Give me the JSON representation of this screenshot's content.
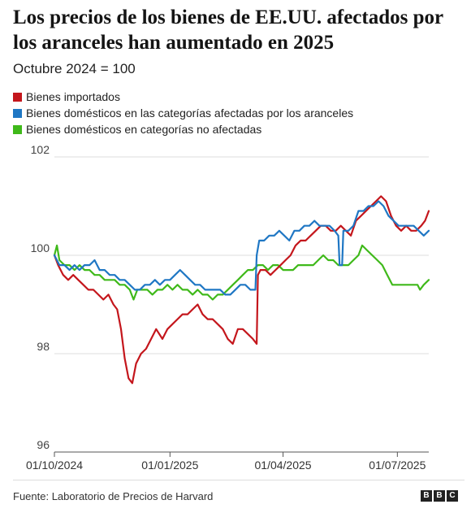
{
  "header": {
    "title": "Los precios de los bienes de EE.UU. afectados por los aranceles han aumentado en 2025",
    "subtitle": "Octubre 2024 = 100"
  },
  "footer": {
    "source": "Fuente: Laboratorio de Precios de Harvard",
    "logo_letters": [
      "B",
      "B",
      "C"
    ]
  },
  "chart_data": {
    "type": "line",
    "title": "Los precios de los bienes de EE.UU. afectados por los aranceles han aumentado en 2025",
    "subtitle": "Octubre 2024 = 100",
    "xlabel": "",
    "ylabel": "",
    "ylim": [
      96,
      102
    ],
    "yticks": [
      "102",
      "100",
      "98",
      "96"
    ],
    "xlim": [
      "2024-10-01",
      "2025-07-26"
    ],
    "xticks": [
      {
        "label": "01/10/2024",
        "date": "2024-10-01"
      },
      {
        "label": "01/01/2025",
        "date": "2025-01-01"
      },
      {
        "label": "01/04/2025",
        "date": "2025-04-01"
      },
      {
        "label": "01/07/2025",
        "date": "2025-07-01"
      }
    ],
    "grid": "horizontal",
    "legend_position": "top-left",
    "series": [
      {
        "name": "Bienes importados",
        "color": "#c4161c",
        "points": [
          [
            "2024-10-01",
            100.0
          ],
          [
            "2024-10-04",
            99.8
          ],
          [
            "2024-10-08",
            99.6
          ],
          [
            "2024-10-12",
            99.5
          ],
          [
            "2024-10-16",
            99.6
          ],
          [
            "2024-10-20",
            99.5
          ],
          [
            "2024-10-24",
            99.4
          ],
          [
            "2024-10-28",
            99.3
          ],
          [
            "2024-11-01",
            99.3
          ],
          [
            "2024-11-05",
            99.2
          ],
          [
            "2024-11-09",
            99.1
          ],
          [
            "2024-11-13",
            99.2
          ],
          [
            "2024-11-17",
            99.0
          ],
          [
            "2024-11-20",
            98.9
          ],
          [
            "2024-11-23",
            98.5
          ],
          [
            "2024-11-26",
            97.9
          ],
          [
            "2024-11-29",
            97.5
          ],
          [
            "2024-12-02",
            97.4
          ],
          [
            "2024-12-05",
            97.8
          ],
          [
            "2024-12-09",
            98.0
          ],
          [
            "2024-12-13",
            98.1
          ],
          [
            "2024-12-17",
            98.3
          ],
          [
            "2024-12-21",
            98.5
          ],
          [
            "2024-12-26",
            98.3
          ],
          [
            "2024-12-30",
            98.5
          ],
          [
            "2025-01-03",
            98.6
          ],
          [
            "2025-01-07",
            98.7
          ],
          [
            "2025-01-11",
            98.8
          ],
          [
            "2025-01-15",
            98.8
          ],
          [
            "2025-01-19",
            98.9
          ],
          [
            "2025-01-23",
            99.0
          ],
          [
            "2025-01-27",
            98.8
          ],
          [
            "2025-01-31",
            98.7
          ],
          [
            "2025-02-04",
            98.7
          ],
          [
            "2025-02-08",
            98.6
          ],
          [
            "2025-02-12",
            98.5
          ],
          [
            "2025-02-16",
            98.3
          ],
          [
            "2025-02-20",
            98.2
          ],
          [
            "2025-02-24",
            98.5
          ],
          [
            "2025-02-28",
            98.5
          ],
          [
            "2025-03-04",
            98.4
          ],
          [
            "2025-03-08",
            98.3
          ],
          [
            "2025-03-11",
            98.2
          ],
          [
            "2025-03-12",
            99.6
          ],
          [
            "2025-03-14",
            99.7
          ],
          [
            "2025-03-18",
            99.7
          ],
          [
            "2025-03-22",
            99.6
          ],
          [
            "2025-03-26",
            99.7
          ],
          [
            "2025-03-30",
            99.8
          ],
          [
            "2025-04-03",
            99.9
          ],
          [
            "2025-04-07",
            100.0
          ],
          [
            "2025-04-11",
            100.2
          ],
          [
            "2025-04-15",
            100.3
          ],
          [
            "2025-04-19",
            100.3
          ],
          [
            "2025-04-23",
            100.4
          ],
          [
            "2025-04-27",
            100.5
          ],
          [
            "2025-05-01",
            100.6
          ],
          [
            "2025-05-05",
            100.6
          ],
          [
            "2025-05-09",
            100.5
          ],
          [
            "2025-05-13",
            100.5
          ],
          [
            "2025-05-17",
            100.6
          ],
          [
            "2025-05-21",
            100.5
          ],
          [
            "2025-05-25",
            100.4
          ],
          [
            "2025-05-29",
            100.7
          ],
          [
            "2025-06-02",
            100.8
          ],
          [
            "2025-06-06",
            100.9
          ],
          [
            "2025-06-10",
            101.0
          ],
          [
            "2025-06-14",
            101.1
          ],
          [
            "2025-06-18",
            101.2
          ],
          [
            "2025-06-22",
            101.1
          ],
          [
            "2025-06-26",
            100.8
          ],
          [
            "2025-06-30",
            100.6
          ],
          [
            "2025-07-04",
            100.5
          ],
          [
            "2025-07-08",
            100.6
          ],
          [
            "2025-07-12",
            100.5
          ],
          [
            "2025-07-16",
            100.5
          ],
          [
            "2025-07-20",
            100.6
          ],
          [
            "2025-07-23",
            100.7
          ],
          [
            "2025-07-26",
            100.9
          ]
        ]
      },
      {
        "name": "Bienes domésticos en las categorías afectadas por los aranceles",
        "color": "#1f77c4",
        "points": [
          [
            "2024-10-01",
            100.0
          ],
          [
            "2024-10-05",
            99.8
          ],
          [
            "2024-10-09",
            99.8
          ],
          [
            "2024-10-13",
            99.7
          ],
          [
            "2024-10-17",
            99.8
          ],
          [
            "2024-10-21",
            99.7
          ],
          [
            "2024-10-25",
            99.8
          ],
          [
            "2024-10-29",
            99.8
          ],
          [
            "2024-11-02",
            99.9
          ],
          [
            "2024-11-06",
            99.7
          ],
          [
            "2024-11-10",
            99.7
          ],
          [
            "2024-11-14",
            99.6
          ],
          [
            "2024-11-18",
            99.6
          ],
          [
            "2024-11-22",
            99.5
          ],
          [
            "2024-11-26",
            99.5
          ],
          [
            "2024-11-30",
            99.4
          ],
          [
            "2024-12-04",
            99.3
          ],
          [
            "2024-12-08",
            99.3
          ],
          [
            "2024-12-12",
            99.4
          ],
          [
            "2024-12-16",
            99.4
          ],
          [
            "2024-12-20",
            99.5
          ],
          [
            "2024-12-24",
            99.4
          ],
          [
            "2024-12-28",
            99.5
          ],
          [
            "2025-01-01",
            99.5
          ],
          [
            "2025-01-05",
            99.6
          ],
          [
            "2025-01-09",
            99.7
          ],
          [
            "2025-01-13",
            99.6
          ],
          [
            "2025-01-17",
            99.5
          ],
          [
            "2025-01-21",
            99.4
          ],
          [
            "2025-01-25",
            99.4
          ],
          [
            "2025-01-29",
            99.3
          ],
          [
            "2025-02-02",
            99.3
          ],
          [
            "2025-02-06",
            99.3
          ],
          [
            "2025-02-10",
            99.3
          ],
          [
            "2025-02-14",
            99.2
          ],
          [
            "2025-02-18",
            99.2
          ],
          [
            "2025-02-22",
            99.3
          ],
          [
            "2025-02-26",
            99.4
          ],
          [
            "2025-03-02",
            99.4
          ],
          [
            "2025-03-06",
            99.3
          ],
          [
            "2025-03-10",
            99.3
          ],
          [
            "2025-03-11",
            100.0
          ],
          [
            "2025-03-13",
            100.3
          ],
          [
            "2025-03-17",
            100.3
          ],
          [
            "2025-03-21",
            100.4
          ],
          [
            "2025-03-25",
            100.4
          ],
          [
            "2025-03-29",
            100.5
          ],
          [
            "2025-04-02",
            100.4
          ],
          [
            "2025-04-06",
            100.3
          ],
          [
            "2025-04-10",
            100.5
          ],
          [
            "2025-04-14",
            100.5
          ],
          [
            "2025-04-18",
            100.6
          ],
          [
            "2025-04-22",
            100.6
          ],
          [
            "2025-04-26",
            100.7
          ],
          [
            "2025-04-30",
            100.6
          ],
          [
            "2025-05-04",
            100.6
          ],
          [
            "2025-05-08",
            100.6
          ],
          [
            "2025-05-12",
            100.5
          ],
          [
            "2025-05-15",
            100.4
          ],
          [
            "2025-05-16",
            99.8
          ],
          [
            "2025-05-18",
            99.8
          ],
          [
            "2025-05-19",
            100.5
          ],
          [
            "2025-05-23",
            100.5
          ],
          [
            "2025-05-27",
            100.6
          ],
          [
            "2025-05-31",
            100.9
          ],
          [
            "2025-06-04",
            100.9
          ],
          [
            "2025-06-08",
            101.0
          ],
          [
            "2025-06-12",
            101.0
          ],
          [
            "2025-06-16",
            101.1
          ],
          [
            "2025-06-20",
            101.0
          ],
          [
            "2025-06-24",
            100.8
          ],
          [
            "2025-06-28",
            100.7
          ],
          [
            "2025-07-02",
            100.6
          ],
          [
            "2025-07-06",
            100.6
          ],
          [
            "2025-07-10",
            100.6
          ],
          [
            "2025-07-14",
            100.6
          ],
          [
            "2025-07-18",
            100.5
          ],
          [
            "2025-07-22",
            100.4
          ],
          [
            "2025-07-26",
            100.5
          ]
        ]
      },
      {
        "name": "Bienes domésticos en categorías no afectadas",
        "color": "#3fb91a",
        "points": [
          [
            "2024-10-01",
            100.0
          ],
          [
            "2024-10-03",
            100.2
          ],
          [
            "2024-10-05",
            99.9
          ],
          [
            "2024-10-09",
            99.8
          ],
          [
            "2024-10-13",
            99.8
          ],
          [
            "2024-10-17",
            99.7
          ],
          [
            "2024-10-21",
            99.8
          ],
          [
            "2024-10-25",
            99.7
          ],
          [
            "2024-10-29",
            99.7
          ],
          [
            "2024-11-02",
            99.6
          ],
          [
            "2024-11-06",
            99.6
          ],
          [
            "2024-11-10",
            99.5
          ],
          [
            "2024-11-14",
            99.5
          ],
          [
            "2024-11-18",
            99.5
          ],
          [
            "2024-11-22",
            99.4
          ],
          [
            "2024-11-26",
            99.4
          ],
          [
            "2024-11-30",
            99.3
          ],
          [
            "2024-12-03",
            99.1
          ],
          [
            "2024-12-06",
            99.3
          ],
          [
            "2024-12-10",
            99.3
          ],
          [
            "2024-12-14",
            99.3
          ],
          [
            "2024-12-18",
            99.2
          ],
          [
            "2024-12-22",
            99.3
          ],
          [
            "2024-12-26",
            99.3
          ],
          [
            "2024-12-30",
            99.4
          ],
          [
            "2025-01-03",
            99.3
          ],
          [
            "2025-01-07",
            99.4
          ],
          [
            "2025-01-11",
            99.3
          ],
          [
            "2025-01-15",
            99.3
          ],
          [
            "2025-01-19",
            99.2
          ],
          [
            "2025-01-23",
            99.3
          ],
          [
            "2025-01-27",
            99.2
          ],
          [
            "2025-01-31",
            99.2
          ],
          [
            "2025-02-04",
            99.1
          ],
          [
            "2025-02-08",
            99.2
          ],
          [
            "2025-02-12",
            99.2
          ],
          [
            "2025-02-16",
            99.3
          ],
          [
            "2025-02-20",
            99.4
          ],
          [
            "2025-02-24",
            99.5
          ],
          [
            "2025-02-28",
            99.6
          ],
          [
            "2025-03-04",
            99.7
          ],
          [
            "2025-03-08",
            99.7
          ],
          [
            "2025-03-12",
            99.8
          ],
          [
            "2025-03-16",
            99.8
          ],
          [
            "2025-03-20",
            99.7
          ],
          [
            "2025-03-24",
            99.8
          ],
          [
            "2025-03-28",
            99.8
          ],
          [
            "2025-04-01",
            99.7
          ],
          [
            "2025-04-05",
            99.7
          ],
          [
            "2025-04-09",
            99.7
          ],
          [
            "2025-04-13",
            99.8
          ],
          [
            "2025-04-17",
            99.8
          ],
          [
            "2025-04-21",
            99.8
          ],
          [
            "2025-04-25",
            99.8
          ],
          [
            "2025-04-29",
            99.9
          ],
          [
            "2025-05-03",
            100.0
          ],
          [
            "2025-05-07",
            99.9
          ],
          [
            "2025-05-11",
            99.9
          ],
          [
            "2025-05-15",
            99.8
          ],
          [
            "2025-05-19",
            99.8
          ],
          [
            "2025-05-23",
            99.8
          ],
          [
            "2025-05-27",
            99.9
          ],
          [
            "2025-05-31",
            100.0
          ],
          [
            "2025-06-03",
            100.2
          ],
          [
            "2025-06-07",
            100.1
          ],
          [
            "2025-06-11",
            100.0
          ],
          [
            "2025-06-15",
            99.9
          ],
          [
            "2025-06-19",
            99.8
          ],
          [
            "2025-06-23",
            99.6
          ],
          [
            "2025-06-27",
            99.4
          ],
          [
            "2025-07-01",
            99.4
          ],
          [
            "2025-07-05",
            99.4
          ],
          [
            "2025-07-09",
            99.4
          ],
          [
            "2025-07-13",
            99.4
          ],
          [
            "2025-07-17",
            99.4
          ],
          [
            "2025-07-19",
            99.3
          ],
          [
            "2025-07-22",
            99.4
          ],
          [
            "2025-07-26",
            99.5
          ]
        ]
      }
    ]
  }
}
